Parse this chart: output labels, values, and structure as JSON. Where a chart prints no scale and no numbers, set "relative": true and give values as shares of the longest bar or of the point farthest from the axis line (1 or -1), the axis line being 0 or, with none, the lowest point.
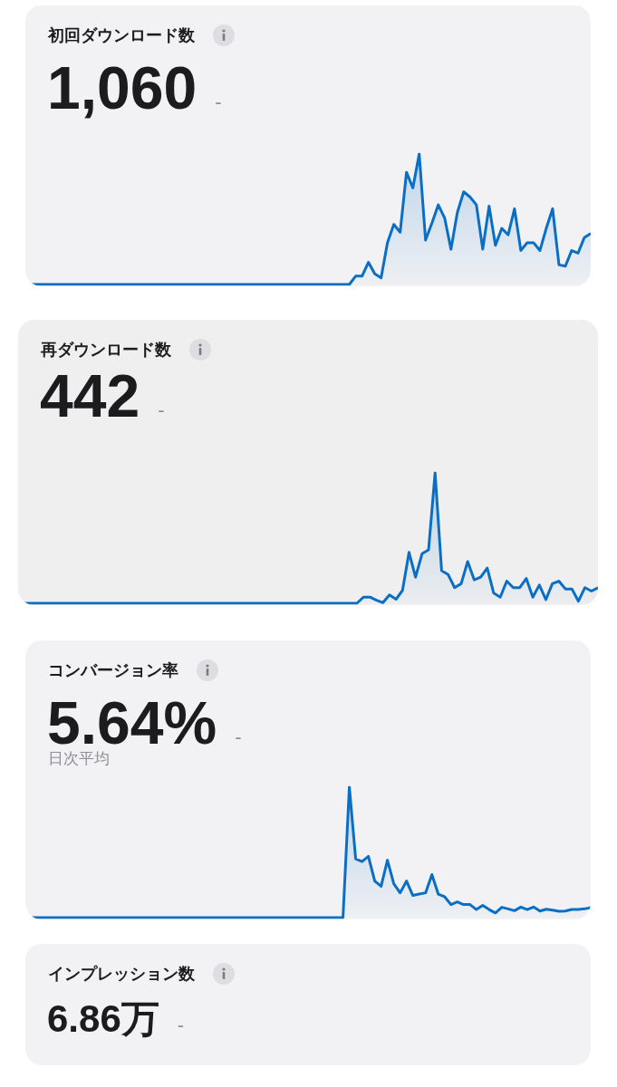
{
  "chart_data": [
    {
      "type": "area",
      "title": "初回ダウンロード数",
      "subtitle": "1,060",
      "annotations": [
        "-"
      ],
      "relative": true,
      "color": "#0a6fc4",
      "categories": [
        null,
        null,
        null,
        null,
        null,
        null,
        null,
        null,
        null,
        null,
        null,
        null,
        null,
        null,
        null,
        null,
        null,
        null,
        null,
        null,
        null,
        null,
        null,
        null,
        null,
        null,
        null,
        null,
        null,
        null,
        null,
        null,
        null,
        null,
        null,
        null,
        null,
        null,
        null,
        null,
        null,
        null,
        null,
        null,
        null,
        null,
        null,
        null,
        null,
        null,
        null,
        null,
        null,
        null,
        null,
        null,
        null,
        null,
        null,
        null,
        null,
        null,
        null,
        null,
        null,
        null,
        null,
        null,
        null,
        null,
        null,
        null,
        null,
        null,
        null,
        null,
        null,
        null,
        null,
        null,
        null,
        null,
        null,
        null,
        null,
        null,
        null,
        null,
        null,
        null
      ],
      "values": [
        0,
        0,
        0,
        0,
        0,
        0,
        0,
        0,
        0,
        0,
        0,
        0,
        0,
        0,
        0,
        0,
        0,
        0,
        0,
        0,
        0,
        0,
        0,
        0,
        0,
        0,
        0,
        0,
        0,
        0,
        0,
        0,
        0,
        0,
        0,
        0,
        0,
        0,
        0,
        0,
        0,
        0,
        0,
        0,
        0,
        0,
        0,
        0,
        0,
        0,
        0,
        0,
        0.064,
        0.064,
        0.17,
        0.081,
        0.05,
        0.32,
        0.46,
        0.4,
        0.86,
        0.74,
        1.0,
        0.34,
        0.47,
        0.61,
        0.51,
        0.27,
        0.55,
        0.71,
        0.67,
        0.61,
        0.27,
        0.6,
        0.3,
        0.43,
        0.38,
        0.58,
        0.26,
        0.32,
        0.32,
        0.26,
        0.43,
        0.58,
        0.15,
        0.14,
        0.26,
        0.24,
        0.36,
        0.39
      ]
    },
    {
      "type": "area",
      "title": "再ダウンロード数",
      "subtitle": "442",
      "annotations": [
        "-"
      ],
      "relative": true,
      "color": "#0a6fc4",
      "categories": [
        null,
        null,
        null,
        null,
        null,
        null,
        null,
        null,
        null,
        null,
        null,
        null,
        null,
        null,
        null,
        null,
        null,
        null,
        null,
        null,
        null,
        null,
        null,
        null,
        null,
        null,
        null,
        null,
        null,
        null,
        null,
        null,
        null,
        null,
        null,
        null,
        null,
        null,
        null,
        null,
        null,
        null,
        null,
        null,
        null,
        null,
        null,
        null,
        null,
        null,
        null,
        null,
        null,
        null,
        null,
        null,
        null,
        null,
        null,
        null,
        null,
        null,
        null,
        null,
        null,
        null,
        null,
        null,
        null,
        null,
        null,
        null,
        null,
        null,
        null,
        null,
        null,
        null,
        null,
        null,
        null,
        null,
        null,
        null,
        null,
        null,
        null,
        null,
        null,
        null
      ],
      "values": [
        0,
        0,
        0,
        0,
        0,
        0,
        0,
        0,
        0,
        0,
        0,
        0,
        0,
        0,
        0,
        0,
        0,
        0,
        0,
        0,
        0,
        0,
        0,
        0,
        0,
        0,
        0,
        0,
        0,
        0,
        0,
        0,
        0,
        0,
        0,
        0,
        0,
        0,
        0,
        0,
        0,
        0,
        0,
        0,
        0,
        0,
        0,
        0,
        0,
        0,
        0,
        0,
        0,
        0.047,
        0.047,
        0.024,
        0.005,
        0.064,
        0.031,
        0.099,
        0.39,
        0.2,
        0.38,
        0.41,
        1.0,
        0.25,
        0.22,
        0.12,
        0.15,
        0.32,
        0.18,
        0.2,
        0.27,
        0.078,
        0.047,
        0.17,
        0.12,
        0.12,
        0.19,
        0.047,
        0.14,
        0.028,
        0.15,
        0.17,
        0.11,
        0.11,
        0.016,
        0.12,
        0.094,
        0.12
      ]
    },
    {
      "type": "area",
      "title": "コンバージョン率",
      "subtitle": "5.64%",
      "annotations": [
        "-",
        "日次平均"
      ],
      "relative": true,
      "color": "#0a6fc4",
      "categories": [
        null,
        null,
        null,
        null,
        null,
        null,
        null,
        null,
        null,
        null,
        null,
        null,
        null,
        null,
        null,
        null,
        null,
        null,
        null,
        null,
        null,
        null,
        null,
        null,
        null,
        null,
        null,
        null,
        null,
        null,
        null,
        null,
        null,
        null,
        null,
        null,
        null,
        null,
        null,
        null,
        null,
        null,
        null,
        null,
        null,
        null,
        null,
        null,
        null,
        null,
        null,
        null,
        null,
        null,
        null,
        null,
        null,
        null,
        null,
        null,
        null,
        null,
        null,
        null,
        null,
        null,
        null,
        null,
        null,
        null,
        null,
        null,
        null,
        null,
        null,
        null,
        null,
        null,
        null,
        null,
        null,
        null,
        null,
        null,
        null,
        null,
        null,
        null,
        null,
        null
      ],
      "values": [
        0,
        0,
        0,
        0,
        0,
        0,
        0,
        0,
        0,
        0,
        0,
        0,
        0,
        0,
        0,
        0,
        0,
        0,
        0,
        0,
        0,
        0,
        0,
        0,
        0,
        0,
        0,
        0,
        0,
        0,
        0,
        0,
        0,
        0,
        0,
        0,
        0,
        0,
        0,
        0,
        0,
        0,
        0,
        0,
        0,
        0,
        0,
        0,
        0,
        0,
        0,
        1.0,
        0.45,
        0.43,
        0.47,
        0.28,
        0.24,
        0.44,
        0.26,
        0.19,
        0.28,
        0.17,
        0.18,
        0.19,
        0.33,
        0.18,
        0.16,
        0.1,
        0.12,
        0.1,
        0.1,
        0.062,
        0.093,
        0.062,
        0.036,
        0.079,
        0.067,
        0.053,
        0.081,
        0.062,
        0.081,
        0.05,
        0.064,
        0.057,
        0.048,
        0.05,
        0.062,
        0.062,
        0.067,
        0.076
      ]
    },
    {
      "type": "other",
      "title": "インプレッション数",
      "subtitle": "6.86万",
      "annotations": [
        "-"
      ]
    }
  ]
}
